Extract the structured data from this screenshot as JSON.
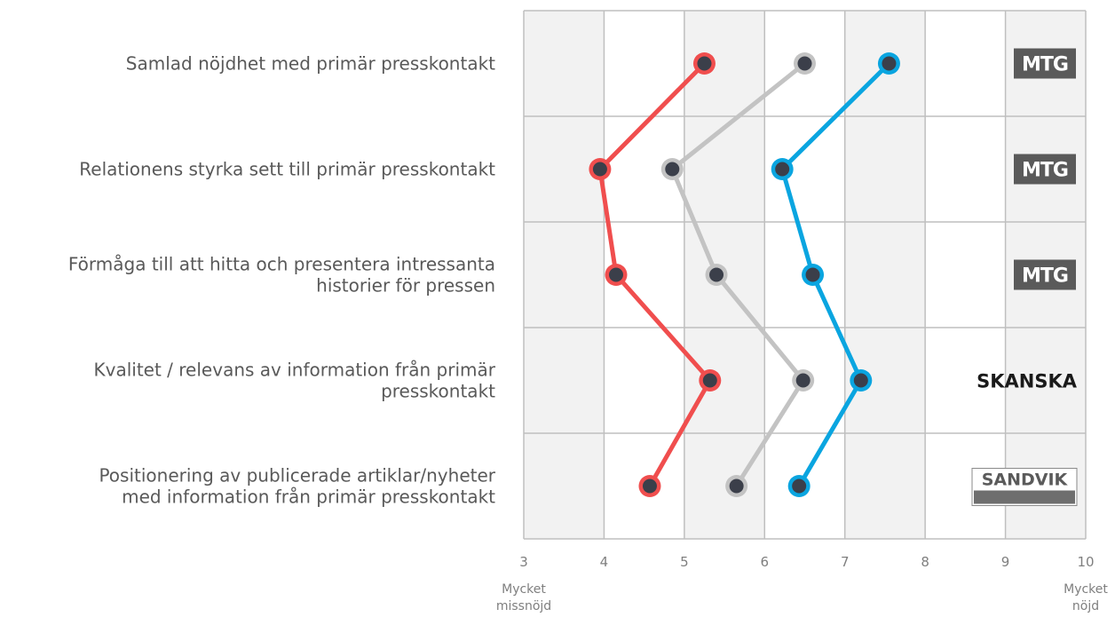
{
  "chart_data": {
    "type": "line",
    "orientation": "horizontal",
    "title": "",
    "xlabel": "",
    "ylabel": "",
    "xlim": [
      3,
      10
    ],
    "x_ticks": [
      3,
      4,
      5,
      6,
      7,
      8,
      9,
      10
    ],
    "x_end_labels": {
      "left": [
        "Mycket",
        "missnöjd"
      ],
      "right": [
        "Mycket",
        "nöjd"
      ]
    },
    "grid": true,
    "legend": "none",
    "categories": [
      [
        "Samlad nöjdhet med primär presskontakt"
      ],
      [
        "Relationens styrka sett till primär presskontakt"
      ],
      [
        "Förmåga till att hitta och presentera intressanta",
        "historier för pressen"
      ],
      [
        "Kvalitet / relevans av information från primär",
        "presskontakt"
      ],
      [
        "Positionering av publicerade artiklar/nyheter",
        "med information från primär presskontakt"
      ]
    ],
    "series": [
      {
        "color": "#F04E4E",
        "values": [
          5.25,
          3.95,
          4.15,
          5.32,
          4.57
        ]
      },
      {
        "color": "#C3C3C3",
        "values": [
          6.5,
          4.85,
          5.4,
          6.48,
          5.65
        ]
      },
      {
        "color": "#0AA5E0",
        "values": [
          7.55,
          6.22,
          6.6,
          7.2,
          6.43
        ]
      }
    ],
    "row_logos": [
      "MTG",
      "MTG",
      "MTG",
      "SKANSKA",
      "SANDVIK"
    ],
    "colors": {
      "band_dark": "#F2F2F2",
      "band_light": "#FFFFFF",
      "grid": "#BFBFBF",
      "marker_center": "#3B3F4A",
      "logo_mtg_bg": "#5A5A5A"
    }
  }
}
